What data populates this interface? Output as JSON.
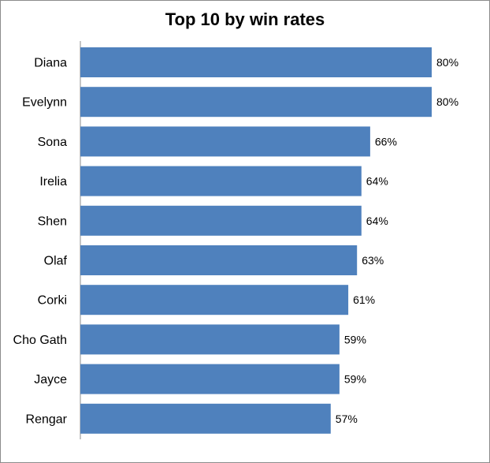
{
  "chart_data": {
    "type": "bar",
    "orientation": "horizontal",
    "title": "Top 10 by win rates",
    "categories": [
      "Diana",
      "Evelynn",
      "Sona",
      "Irelia",
      "Shen",
      "Olaf",
      "Corki",
      "Cho Gath",
      "Jayce",
      "Rengar"
    ],
    "values": [
      80,
      80,
      66,
      64,
      64,
      63,
      61,
      59,
      59,
      57
    ],
    "value_labels": [
      "80%",
      "80%",
      "66%",
      "64%",
      "64%",
      "63%",
      "61%",
      "59%",
      "59%",
      "57%"
    ],
    "value_unit": "%",
    "xlim": [
      0,
      80
    ],
    "grid": false,
    "legend": "none",
    "bar_color": "#4F81BD"
  }
}
